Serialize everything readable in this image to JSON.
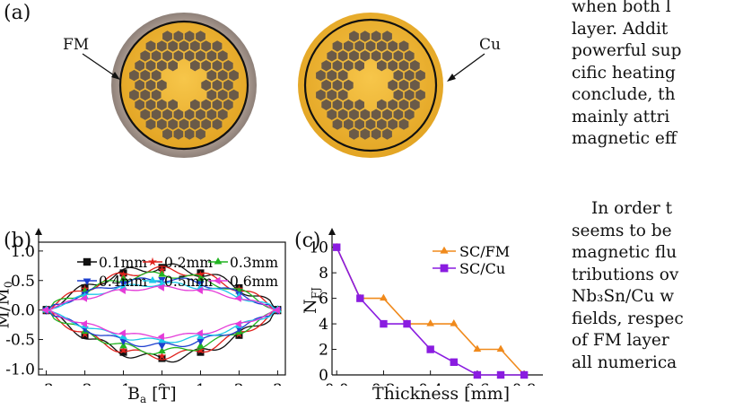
{
  "panel_a": {
    "label": "(a)",
    "left_disk_label": "FM",
    "right_disk_label": "Cu",
    "colors": {
      "gold": "#f2b83a",
      "gold_dark": "#d99a1c",
      "hex": "#6a5a48",
      "fm_ring": "#a89a90",
      "wire": "#111111"
    }
  },
  "panel_b": {
    "label": "(b)",
    "ylabel_main": "M/M",
    "ylabel_sub": "0",
    "xlabel_main": "B",
    "xlabel_sub": "a",
    "xlabel_unit": " [T]"
  },
  "panel_c": {
    "label": "(c)",
    "ylabel_main": "N",
    "ylabel_sub": "FJ",
    "xlabel": "Thickness [mm]"
  },
  "chart_data": [
    {
      "type": "line",
      "xlim": [
        -3.2,
        3.2
      ],
      "ylim": [
        -1.1,
        1.15
      ],
      "x_ticks": [
        "-3",
        "-2",
        "-1",
        "0",
        "1",
        "2",
        "3"
      ],
      "y_ticks": [
        "1.0",
        "0.5",
        "0.0",
        "-0.5",
        "-1.0"
      ],
      "legend_position": "top",
      "series": [
        {
          "name": "0.1mm",
          "color": "#111111",
          "marker": "square",
          "upper_peak": 0.72,
          "lower_peak": -0.82
        },
        {
          "name": "0.2mm",
          "color": "#e0201b",
          "marker": "star",
          "upper_peak": 0.68,
          "lower_peak": -0.78
        },
        {
          "name": "0.3mm",
          "color": "#22b422",
          "marker": "triangle-up",
          "upper_peak": 0.6,
          "lower_peak": -0.7
        },
        {
          "name": "0.4mm",
          "color": "#1c3fcf",
          "marker": "triangle-down",
          "upper_peak": 0.52,
          "lower_peak": -0.6
        },
        {
          "name": "0.5mm",
          "color": "#1ec8e8",
          "marker": "triangle-right",
          "upper_peak": 0.44,
          "lower_peak": -0.52
        },
        {
          "name": "0.6mm",
          "color": "#e43bd8",
          "marker": "triangle-left",
          "upper_peak": 0.38,
          "lower_peak": -0.45
        }
      ]
    },
    {
      "type": "line",
      "xlim": [
        -0.02,
        0.88
      ],
      "ylim": [
        0,
        10.4
      ],
      "x_ticks": [
        "0.0",
        "0.2",
        "0.4",
        "0.6",
        "0.8"
      ],
      "y_ticks": [
        "10",
        "8",
        "6",
        "4",
        "2",
        "0"
      ],
      "legend_position": "top-right",
      "series": [
        {
          "name": "SC/FM",
          "color": "#f08a1c",
          "marker": "triangle-up",
          "x": [
            0.0,
            0.1,
            0.2,
            0.3,
            0.4,
            0.5,
            0.6,
            0.7,
            0.8
          ],
          "y": [
            10,
            6,
            6,
            4,
            4,
            4,
            2,
            2,
            0
          ]
        },
        {
          "name": "SC/Cu",
          "color": "#8a1ce0",
          "marker": "square",
          "x": [
            0.0,
            0.1,
            0.2,
            0.3,
            0.4,
            0.5,
            0.6,
            0.7,
            0.8
          ],
          "y": [
            10,
            6,
            4,
            4,
            2,
            1,
            0,
            0,
            0
          ]
        }
      ]
    }
  ],
  "body_text": {
    "lines_top": [
      "when both l",
      "layer. Addit",
      "powerful sup",
      "cific heating",
      "conclude, th",
      "mainly attri",
      "magnetic eff"
    ],
    "lines_bottom": [
      "In order t",
      "seems to be",
      "magnetic flu",
      "tributions ov",
      "Nb₃Sn/Cu w",
      "fields, respec",
      "of FM layer",
      "all numerica"
    ]
  }
}
